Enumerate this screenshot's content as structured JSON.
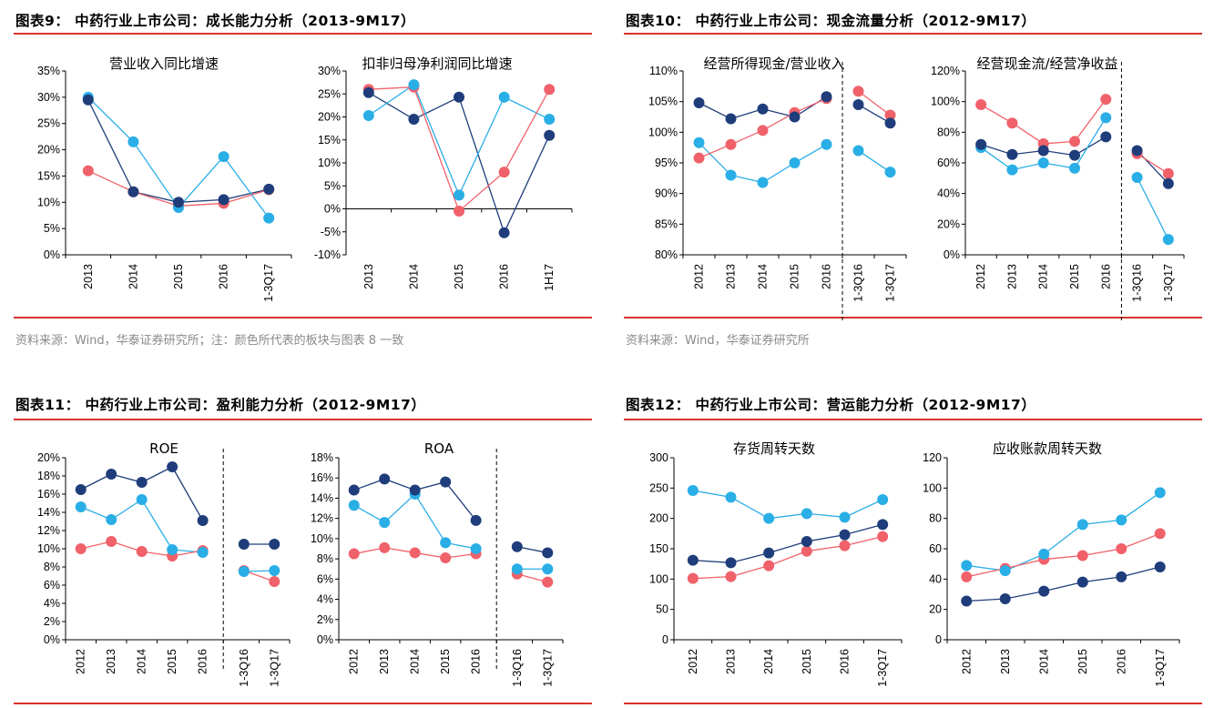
{
  "colors": {
    "navy": "#1f3d7a",
    "cyan": "#29aee6",
    "red": "#f0616a",
    "rule": "#d9342b"
  },
  "figures": [
    {
      "title": "图表9：  中药行业上市公司：成长能力分析（2013-9M17）",
      "source": "资料来源：Wind，华泰证券研究所；注：颜色所代表的板块与图表 8 一致"
    },
    {
      "title": "图表10：  中药行业上市公司：现金流量分析（2012-9M17）",
      "source": "资料来源：Wind，华泰证券研究所"
    },
    {
      "title": "图表11：  中药行业上市公司：盈利能力分析（2012-9M17）",
      "source": ""
    },
    {
      "title": "图表12：  中药行业上市公司：营运能力分析（2012-9M17）",
      "source": ""
    }
  ],
  "chart_data": [
    {
      "type": "line",
      "title": "营业收入同比增速",
      "categories": [
        "2013",
        "2014",
        "2015",
        "2016",
        "1-3Q17"
      ],
      "ylim": [
        0,
        35
      ],
      "yticks": [
        "0%",
        "5%",
        "10%",
        "15%",
        "20%",
        "25%",
        "30%",
        "35%"
      ],
      "tick_values": [
        0,
        5,
        10,
        15,
        20,
        25,
        30,
        35
      ],
      "series": [
        {
          "color": "navy",
          "values": [
            29.5,
            12,
            10,
            10.5,
            12.5
          ]
        },
        {
          "color": "cyan",
          "values": [
            30,
            21.5,
            9,
            18.7,
            7
          ]
        },
        {
          "color": "red",
          "values": [
            16,
            12,
            9.3,
            9.8,
            12.4
          ]
        }
      ]
    },
    {
      "type": "line",
      "title": "扣非归母净利润同比增速",
      "categories": [
        "2013",
        "2014",
        "2015",
        "2016",
        "1H17"
      ],
      "ylim": [
        -10,
        30
      ],
      "yticks": [
        "-10%",
        "-5%",
        "0%",
        "5%",
        "10%",
        "15%",
        "20%",
        "25%",
        "30%"
      ],
      "tick_values": [
        -10,
        -5,
        0,
        5,
        10,
        15,
        20,
        25,
        30
      ],
      "series": [
        {
          "color": "navy",
          "values": [
            25.3,
            19.5,
            24.3,
            -5.2,
            16
          ]
        },
        {
          "color": "cyan",
          "values": [
            20.3,
            27,
            3,
            24.3,
            19.5
          ]
        },
        {
          "color": "red",
          "values": [
            26,
            26.5,
            -0.5,
            8,
            26
          ]
        }
      ]
    },
    {
      "type": "line",
      "title": "经营所得现金/营业收入",
      "categories": [
        "2012",
        "2013",
        "2014",
        "2015",
        "2016",
        "1-3Q16",
        "1-3Q17"
      ],
      "ylim": [
        80,
        110
      ],
      "yticks": [
        "80%",
        "85%",
        "90%",
        "95%",
        "100%",
        "105%",
        "110%"
      ],
      "tick_values": [
        80,
        85,
        90,
        95,
        100,
        105,
        110
      ],
      "split_after": 4,
      "series": [
        {
          "color": "navy",
          "values": [
            104.8,
            102.2,
            103.8,
            102.5,
            105.8,
            104.5,
            101.5
          ]
        },
        {
          "color": "cyan",
          "values": [
            98.3,
            93,
            91.8,
            95,
            98,
            97,
            93.5
          ]
        },
        {
          "color": "red",
          "values": [
            95.8,
            98,
            100.3,
            103.2,
            105.5,
            106.7,
            102.8
          ]
        }
      ]
    },
    {
      "type": "line",
      "title": "经营现金流/经营净收益",
      "categories": [
        "2012",
        "2013",
        "2014",
        "2015",
        "2016",
        "1-3Q16",
        "1-3Q17"
      ],
      "ylim": [
        0,
        120
      ],
      "yticks": [
        "0%",
        "20%",
        "40%",
        "60%",
        "80%",
        "100%",
        "120%"
      ],
      "tick_values": [
        0,
        20,
        40,
        60,
        80,
        100,
        120
      ],
      "split_after": 4,
      "series": [
        {
          "color": "navy",
          "values": [
            72,
            65.5,
            68,
            65,
            77,
            68,
            46.5
          ]
        },
        {
          "color": "cyan",
          "values": [
            70,
            55.5,
            60,
            56.5,
            89.5,
            50.5,
            10
          ]
        },
        {
          "color": "red",
          "values": [
            98,
            86,
            72.5,
            74,
            101.5,
            66,
            53
          ]
        }
      ]
    },
    {
      "type": "line",
      "title": "ROE",
      "categories": [
        "2012",
        "2013",
        "2014",
        "2015",
        "2016",
        "1-3Q16",
        "1-3Q17"
      ],
      "ylim": [
        0,
        20
      ],
      "yticks": [
        "0%",
        "2%",
        "4%",
        "6%",
        "8%",
        "10%",
        "12%",
        "14%",
        "16%",
        "18%",
        "20%"
      ],
      "tick_values": [
        0,
        2,
        4,
        6,
        8,
        10,
        12,
        14,
        16,
        18,
        20
      ],
      "split_after": 4,
      "gap_after": 4,
      "series": [
        {
          "color": "navy",
          "values": [
            16.5,
            18.2,
            17.3,
            19,
            13.1,
            10.5,
            10.5
          ]
        },
        {
          "color": "cyan",
          "values": [
            14.6,
            13.2,
            15.4,
            9.9,
            9.6,
            7.5,
            7.6
          ]
        },
        {
          "color": "red",
          "values": [
            10,
            10.8,
            9.7,
            9.2,
            9.8,
            7.6,
            6.4
          ]
        }
      ]
    },
    {
      "type": "line",
      "title": "ROA",
      "categories": [
        "2012",
        "2013",
        "2014",
        "2015",
        "2016",
        "1-3Q16",
        "1-3Q17"
      ],
      "ylim": [
        0,
        18
      ],
      "yticks": [
        "0%",
        "2%",
        "4%",
        "6%",
        "8%",
        "10%",
        "12%",
        "14%",
        "16%",
        "18%"
      ],
      "tick_values": [
        0,
        2,
        4,
        6,
        8,
        10,
        12,
        14,
        16,
        18
      ],
      "split_after": 4,
      "gap_after": 4,
      "series": [
        {
          "color": "navy",
          "values": [
            14.8,
            15.9,
            14.8,
            15.6,
            11.8,
            9.2,
            8.6
          ]
        },
        {
          "color": "cyan",
          "values": [
            13.3,
            11.6,
            14.4,
            9.6,
            9,
            7,
            7
          ]
        },
        {
          "color": "red",
          "values": [
            8.5,
            9.1,
            8.6,
            8.1,
            8.5,
            6.5,
            5.7
          ]
        }
      ]
    },
    {
      "type": "line",
      "title": "存货周转天数",
      "categories": [
        "2012",
        "2013",
        "2014",
        "2015",
        "2016",
        "1-3Q17"
      ],
      "ylim": [
        0,
        300
      ],
      "yticks": [
        "0",
        "50",
        "100",
        "150",
        "200",
        "250",
        "300"
      ],
      "tick_values": [
        0,
        50,
        100,
        150,
        200,
        250,
        300
      ],
      "series": [
        {
          "color": "navy",
          "values": [
            131,
            127,
            143,
            162,
            173,
            190
          ]
        },
        {
          "color": "cyan",
          "values": [
            246,
            235,
            200,
            208,
            202,
            231
          ]
        },
        {
          "color": "red",
          "values": [
            101,
            104,
            122,
            146,
            155,
            170
          ]
        }
      ]
    },
    {
      "type": "line",
      "title": "应收账款周转天数",
      "categories": [
        "2012",
        "2013",
        "2014",
        "2015",
        "2016",
        "1-3Q17"
      ],
      "ylim": [
        0,
        120
      ],
      "yticks": [
        "0",
        "20",
        "40",
        "60",
        "80",
        "100",
        "120"
      ],
      "tick_values": [
        0,
        20,
        40,
        60,
        80,
        100,
        120
      ],
      "series": [
        {
          "color": "navy",
          "values": [
            25.5,
            27,
            32,
            38,
            41.5,
            48
          ]
        },
        {
          "color": "cyan",
          "values": [
            49,
            45.5,
            56.5,
            76,
            79,
            97
          ]
        },
        {
          "color": "red",
          "values": [
            41.5,
            47,
            53,
            55.5,
            60,
            70
          ]
        }
      ]
    }
  ]
}
